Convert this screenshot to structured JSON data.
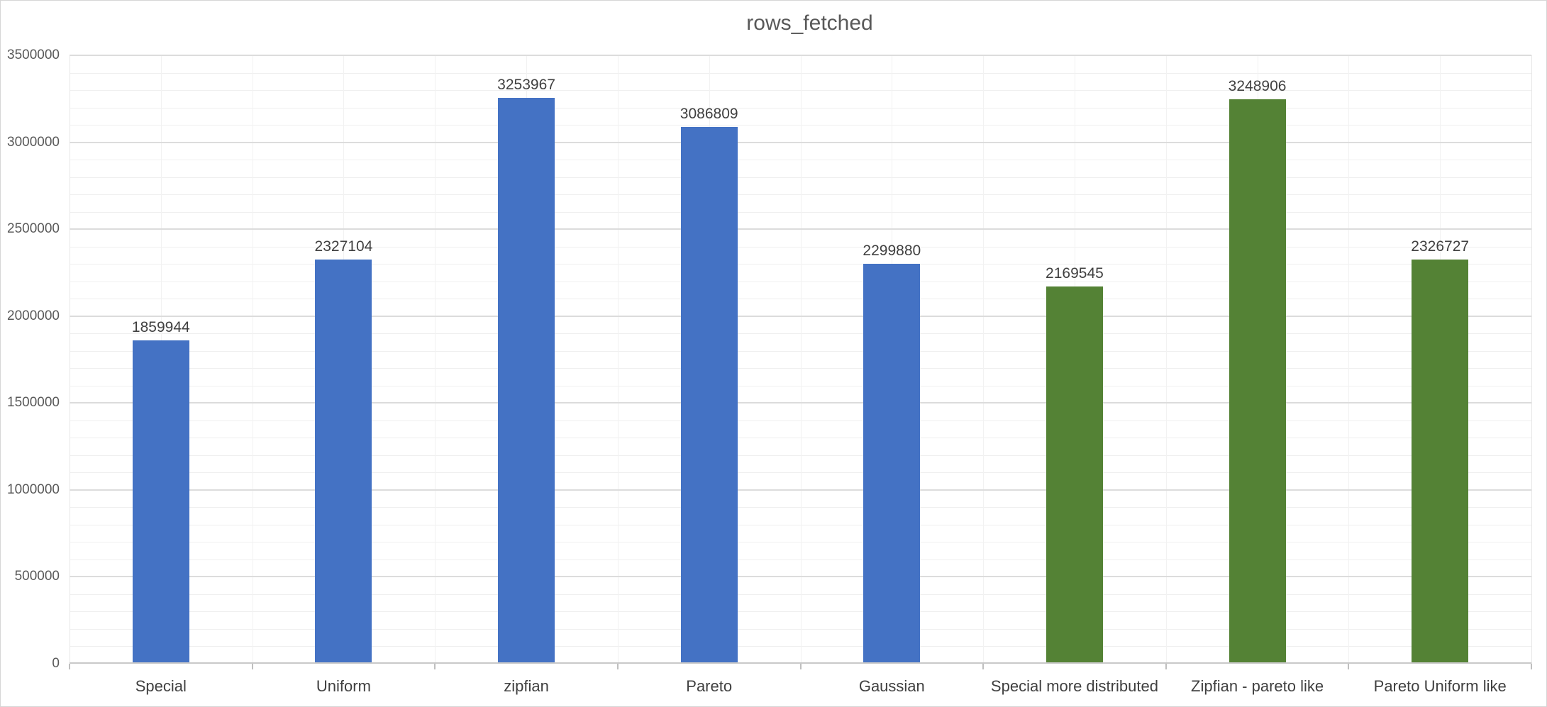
{
  "window": {
    "background": "#ffffff",
    "border_color": "#d6d6d6"
  },
  "chart_data": {
    "type": "bar",
    "title": "rows_fetched",
    "categories": [
      "Special",
      "Uniform",
      "zipfian",
      "Pareto",
      "Gaussian",
      "Special more distributed",
      "Zipfian - pareto like",
      "Pareto Uniform like"
    ],
    "values": [
      1859944,
      2327104,
      3253967,
      3086809,
      2299880,
      2169545,
      3248906,
      2326727
    ],
    "bar_colors": [
      "#4472C4",
      "#4472C4",
      "#4472C4",
      "#4472C4",
      "#4472C4",
      "#548235",
      "#548235",
      "#548235"
    ],
    "xlabel": "",
    "ylabel": "",
    "ylim": [
      0,
      3500000
    ],
    "y_major_step": 500000,
    "y_minor_step": 100000,
    "y_tick_labels": [
      "0",
      "500000",
      "1000000",
      "1500000",
      "2000000",
      "2500000",
      "3000000",
      "3500000"
    ],
    "grid": true,
    "legend_position": "none",
    "colors": {
      "blue_series": "#4472C4",
      "green_series": "#548235",
      "title_text": "#595959",
      "axis_tick_text": "#595959",
      "category_text": "#404040",
      "value_label_text": "#404040",
      "major_gridline": "#dcdcdc",
      "minor_gridline": "#efefef",
      "vertical_gridline": "#f2f2f2",
      "axis_line": "#c9c9c9",
      "tick_mark": "#bfbfbf"
    }
  }
}
